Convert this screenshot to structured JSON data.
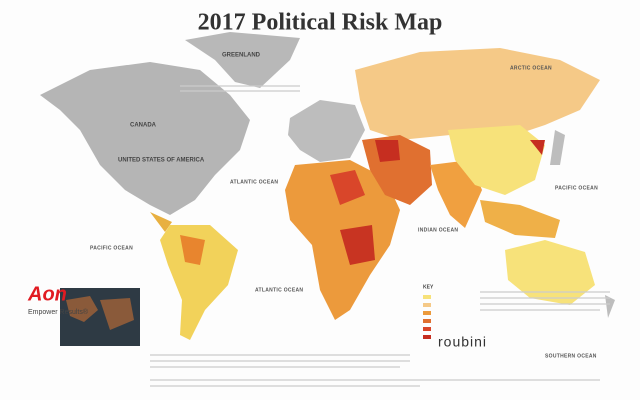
{
  "header": {
    "title": "2017 Political Risk Map"
  },
  "labels": [
    {
      "text": "GREENLAND"
    },
    {
      "text": "CANADA"
    },
    {
      "text": "UNITED STATES OF AMERICA"
    },
    {
      "text": "ATLANTIC OCEAN"
    },
    {
      "text": "ATLANTIC OCEAN"
    },
    {
      "text": "PACIFIC OCEAN"
    },
    {
      "text": "PACIFIC OCEAN"
    },
    {
      "text": "INDIAN OCEAN"
    },
    {
      "text": "ARCTIC OCEAN"
    },
    {
      "text": "SOUTHERN OCEAN"
    }
  ],
  "branding": {
    "aon": "Aon",
    "tagline": "Empower Results®",
    "partner": "roubini"
  },
  "legend": {
    "title": "KEY"
  }
}
